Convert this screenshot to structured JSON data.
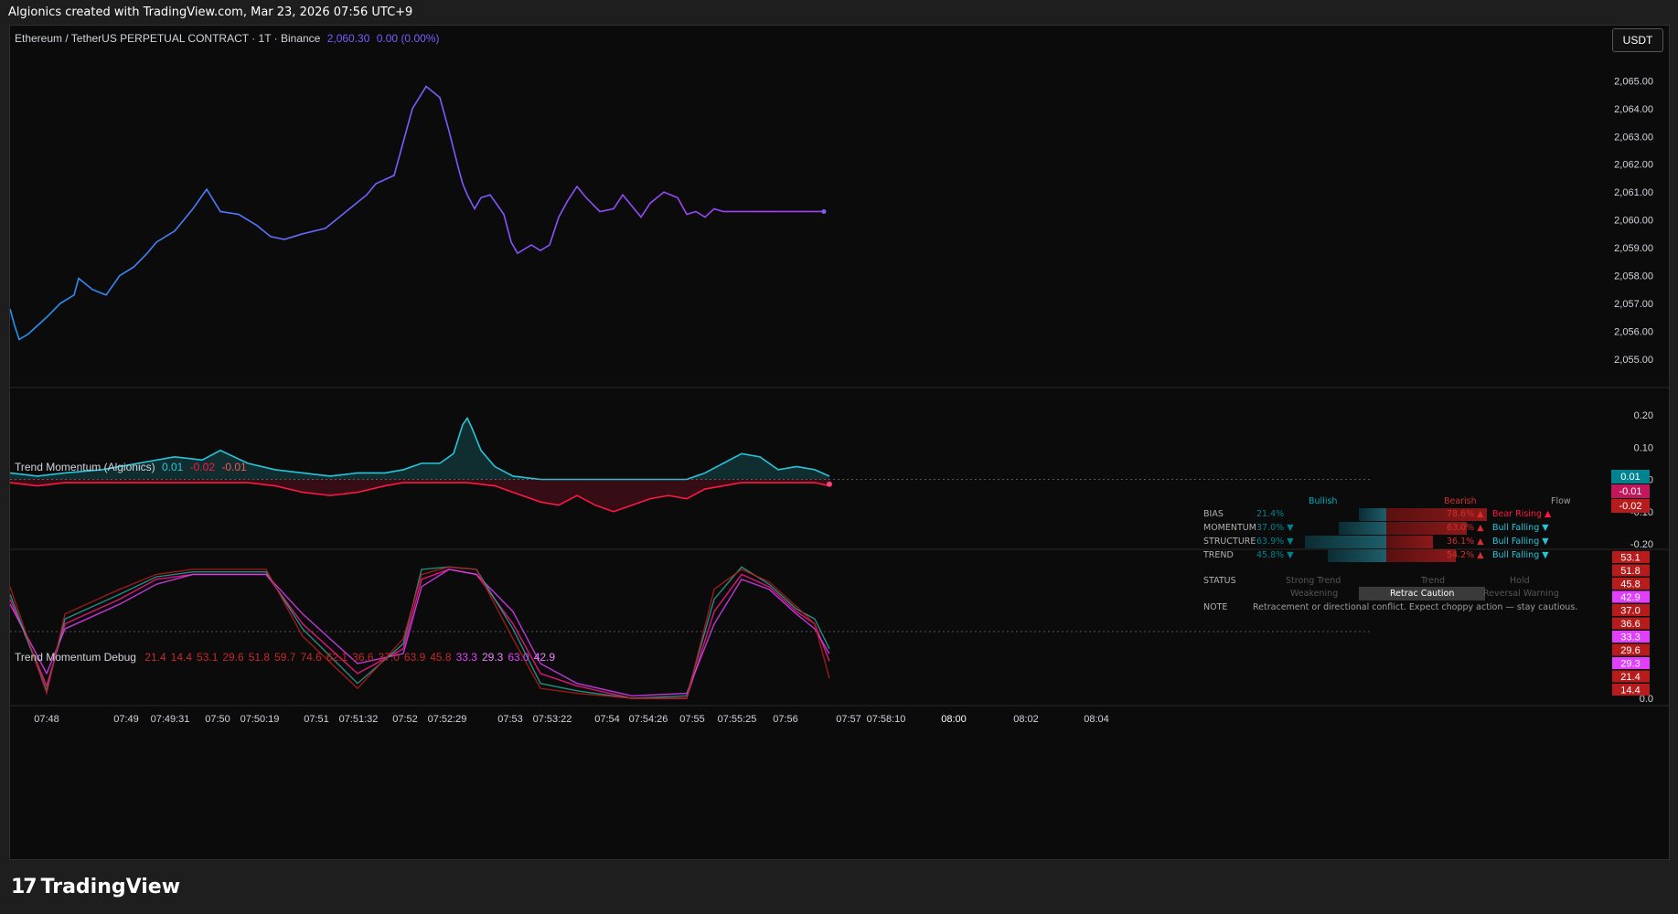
{
  "header": {
    "title": "Algionics created with TradingView.com, Mar 23, 2026 07:56 UTC+9"
  },
  "currency_button": "USDT",
  "brand": {
    "name": "TradingView",
    "logo": "17"
  },
  "main_pane": {
    "symbol": "Ethereum / TetherUS PERPETUAL CONTRACT · 1T · Binance",
    "price": "2,060.30",
    "change": "0.00 (0.00%)",
    "price_color": "#7b5cff"
  },
  "momentum_pane": {
    "title": "Trend Momentum (Algionics)",
    "values": [
      "0.01",
      "-0.02",
      "-0.01"
    ],
    "value_colors": [
      "#26c6da",
      "#ff1744",
      "#ff5252"
    ],
    "badges": [
      "0.01",
      "-0.01",
      "-0.02"
    ]
  },
  "debug_pane": {
    "title": "Trend Momentum Debug",
    "values": [
      "21.4",
      "14.4",
      "53.1",
      "29.6",
      "51.8",
      "59.7",
      "74.6",
      "62.1",
      "36.6",
      "37.0",
      "63.9",
      "45.8",
      "33.3",
      "29.3",
      "63.0",
      "42.9"
    ],
    "badges": [
      {
        "v": "53.1",
        "c": "#b71c1c"
      },
      {
        "v": "51.8",
        "c": "#b71c1c"
      },
      {
        "v": "45.8",
        "c": "#b71c1c"
      },
      {
        "v": "42.9",
        "c": "#e040fb"
      },
      {
        "v": "37.0",
        "c": "#b71c1c"
      },
      {
        "v": "36.6",
        "c": "#b71c1c"
      },
      {
        "v": "33.3",
        "c": "#e040fb"
      },
      {
        "v": "29.6",
        "c": "#b71c1c"
      },
      {
        "v": "29.3",
        "c": "#e040fb"
      },
      {
        "v": "21.4",
        "c": "#b71c1c"
      },
      {
        "v": "14.4",
        "c": "#b71c1c"
      }
    ]
  },
  "time_axis": [
    "07:48",
    "07:49",
    "07:49:31",
    "07:50",
    "07:50:19",
    "07:51",
    "07:51:32",
    "07:52",
    "07:52:29",
    "07:53",
    "07:53:22",
    "07:54",
    "07:54:26",
    "07:55",
    "07:55:25",
    "07:56",
    "07:57",
    "07:58:10",
    "08:00",
    "08:02",
    "08:04"
  ],
  "status_table": {
    "headers": {
      "bull": "Bullish",
      "bear": "Bearish",
      "flow": "Flow"
    },
    "rows": [
      {
        "label": "BIAS",
        "bull": "21.4%",
        "bull_arrow": "",
        "bear": "78.6%",
        "bear_arrow": "▲",
        "flow": "Bear Rising",
        "flow_arrow": "▲",
        "flow_color": "#ff1744",
        "bull_frac": 0.214,
        "bear_frac": 0.786
      },
      {
        "label": "MOMENTUM",
        "bull": "37.0%",
        "bull_arrow": "▼",
        "bear": "63.0%",
        "bear_arrow": "▲",
        "flow": "Bull Falling",
        "flow_arrow": "▼",
        "flow_color": "#26c6da",
        "bull_frac": 0.37,
        "bear_frac": 0.63
      },
      {
        "label": "STRUCTURE",
        "bull": "63.9%",
        "bull_arrow": "▼",
        "bear": "36.1%",
        "bear_arrow": "▲",
        "flow": "Bull Falling",
        "flow_arrow": "▼",
        "flow_color": "#26c6da",
        "bull_frac": 0.639,
        "bear_frac": 0.361
      },
      {
        "label": "TREND",
        "bull": "45.8%",
        "bull_arrow": "▼",
        "bear": "54.2%",
        "bear_arrow": "▲",
        "flow": "Bull Falling",
        "flow_arrow": "▼",
        "flow_color": "#26c6da",
        "bull_frac": 0.458,
        "bear_frac": 0.542
      }
    ],
    "status_label": "STATUS",
    "status_opts_row1": [
      "Strong Trend",
      "Trend",
      "Hold"
    ],
    "status_opts_row2": [
      "Weakening",
      "Retrac Caution",
      "Reversal Warning"
    ],
    "active_status": "Retrac Caution",
    "note_label": "NOTE",
    "note": "Retracement or directional conflict. Expect choppy action — stay cautious."
  },
  "chart_data": [
    {
      "type": "line",
      "title": "Ethereum / TetherUS PERPETUAL CONTRACT · 1T · Binance",
      "xlabel": "",
      "ylabel": "",
      "ylim": [
        2054.5,
        2066.0
      ],
      "yticks": [
        "2,065.00",
        "2,064.00",
        "2,063.00",
        "2,062.00",
        "2,061.00",
        "2,060.00",
        "2,059.00",
        "2,058.00",
        "2,057.00",
        "2,056.00",
        "2,055.00"
      ],
      "x": [
        0,
        5,
        10,
        20,
        40,
        55,
        70,
        75,
        90,
        105,
        120,
        135,
        150,
        160,
        180,
        190,
        200,
        215,
        230,
        250,
        270,
        285,
        300,
        320,
        345,
        375,
        390,
        400,
        420,
        440,
        455,
        470,
        480,
        490,
        495,
        500,
        508,
        515,
        525,
        540,
        548,
        555,
        570,
        580,
        590,
        600,
        610,
        620,
        630,
        645,
        660,
        670,
        680,
        690,
        700,
        715,
        730,
        740,
        750,
        760,
        770,
        780,
        790,
        800,
        810,
        820,
        830,
        840,
        850,
        860,
        870,
        880,
        890
      ],
      "y": [
        2056.8,
        2056.2,
        2055.7,
        2055.9,
        2056.5,
        2057.0,
        2057.3,
        2057.9,
        2057.5,
        2057.3,
        2058.0,
        2058.3,
        2058.8,
        2059.2,
        2059.6,
        2060.0,
        2060.4,
        2061.1,
        2060.3,
        2060.2,
        2059.8,
        2059.4,
        2059.3,
        2059.5,
        2059.7,
        2060.5,
        2060.9,
        2061.3,
        2061.6,
        2064.0,
        2064.8,
        2064.4,
        2063.2,
        2061.9,
        2061.3,
        2060.9,
        2060.4,
        2060.8,
        2060.9,
        2060.2,
        2059.2,
        2058.8,
        2059.1,
        2058.9,
        2059.1,
        2060.1,
        2060.7,
        2061.2,
        2060.8,
        2060.3,
        2060.4,
        2060.9,
        2060.5,
        2060.1,
        2060.6,
        2061.0,
        2060.8,
        2060.2,
        2060.3,
        2060.1,
        2060.4,
        2060.3,
        2060.3,
        2060.3,
        2060.3,
        2060.3,
        2060.3,
        2060.3,
        2060.3,
        2060.3,
        2060.3,
        2060.3,
        2060.3
      ],
      "color_gradient": [
        "#2196f3",
        "#7b5cff",
        "#aa3cf0"
      ]
    },
    {
      "type": "line",
      "title": "Trend Momentum (Algionics)",
      "ylim": [
        -0.2,
        0.2
      ],
      "yticks": [
        "0.20",
        "0.10",
        "0.00",
        "-0.10",
        "-0.20"
      ],
      "series": [
        {
          "color": "#26c6da",
          "x": [
            0,
            30,
            60,
            100,
            140,
            180,
            210,
            230,
            260,
            290,
            320,
            350,
            380,
            410,
            430,
            450,
            470,
            485,
            495,
            500,
            505,
            515,
            530,
            550,
            580,
            620,
            660,
            700,
            740,
            760,
            780,
            800,
            820,
            840,
            860,
            880,
            896
          ],
          "y": [
            0.02,
            0.01,
            0.02,
            0.03,
            0.05,
            0.07,
            0.06,
            0.09,
            0.05,
            0.03,
            0.02,
            0.01,
            0.02,
            0.02,
            0.03,
            0.05,
            0.05,
            0.08,
            0.17,
            0.19,
            0.16,
            0.09,
            0.04,
            0.01,
            0.0,
            0.0,
            0.0,
            0.0,
            0.0,
            0.02,
            0.05,
            0.08,
            0.07,
            0.03,
            0.04,
            0.03,
            0.01
          ]
        },
        {
          "color": "#ff1744",
          "x": [
            0,
            30,
            60,
            100,
            140,
            180,
            210,
            230,
            260,
            290,
            320,
            350,
            380,
            410,
            430,
            450,
            470,
            500,
            530,
            560,
            580,
            600,
            620,
            640,
            660,
            680,
            700,
            720,
            740,
            760,
            780,
            800,
            820,
            840,
            860,
            880,
            896
          ],
          "y": [
            -0.01,
            -0.02,
            -0.01,
            -0.01,
            -0.01,
            -0.01,
            -0.01,
            -0.01,
            -0.01,
            -0.02,
            -0.04,
            -0.05,
            -0.04,
            -0.02,
            -0.01,
            -0.01,
            -0.01,
            -0.01,
            -0.02,
            -0.05,
            -0.07,
            -0.08,
            -0.05,
            -0.08,
            -0.1,
            -0.08,
            -0.06,
            -0.05,
            -0.06,
            -0.03,
            -0.02,
            -0.01,
            -0.01,
            -0.01,
            -0.01,
            -0.01,
            -0.02
          ]
        }
      ]
    },
    {
      "type": "line",
      "title": "Trend Momentum Debug",
      "ylim": [
        0,
        53.1
      ],
      "yticks": [
        "0.0"
      ],
      "series": [
        {
          "color": "#ff1a8c",
          "x": [
            0,
            40,
            60,
            120,
            160,
            200,
            280,
            320,
            380,
            430,
            450,
            480,
            510,
            550,
            580,
            620,
            680,
            740,
            770,
            800,
            830,
            860,
            880,
            896
          ],
          "y": [
            40,
            5,
            30,
            40,
            48,
            50,
            50,
            30,
            10,
            20,
            48,
            52,
            50,
            30,
            10,
            5,
            0,
            0,
            35,
            50,
            45,
            35,
            30,
            15
          ]
        },
        {
          "color": "#e040fb",
          "x": [
            0,
            40,
            60,
            120,
            160,
            200,
            280,
            320,
            380,
            430,
            450,
            480,
            510,
            550,
            580,
            620,
            680,
            740,
            770,
            800,
            830,
            860,
            880,
            896
          ],
          "y": [
            38,
            10,
            28,
            38,
            46,
            50,
            50,
            34,
            14,
            18,
            45,
            52,
            50,
            35,
            14,
            6,
            1,
            2,
            30,
            48,
            44,
            34,
            28,
            18
          ]
        },
        {
          "color": "#26a69a",
          "x": [
            0,
            40,
            60,
            120,
            160,
            200,
            280,
            320,
            380,
            430,
            450,
            480,
            510,
            550,
            580,
            620,
            680,
            740,
            770,
            800,
            830,
            860,
            880,
            896
          ],
          "y": [
            42,
            3,
            32,
            42,
            49,
            51,
            51,
            28,
            6,
            22,
            52,
            53,
            52,
            28,
            6,
            3,
            0,
            1,
            40,
            53,
            46,
            36,
            32,
            20
          ]
        },
        {
          "color": "#b71c1c",
          "x": [
            0,
            40,
            60,
            120,
            160,
            200,
            280,
            320,
            380,
            430,
            450,
            480,
            510,
            550,
            580,
            620,
            680,
            740,
            770,
            800,
            830,
            860,
            880,
            896
          ],
          "y": [
            45,
            2,
            34,
            44,
            50,
            52,
            52,
            25,
            4,
            24,
            50,
            53,
            52,
            24,
            4,
            2,
            0,
            0,
            44,
            52,
            47,
            37,
            30,
            8
          ]
        }
      ]
    }
  ]
}
